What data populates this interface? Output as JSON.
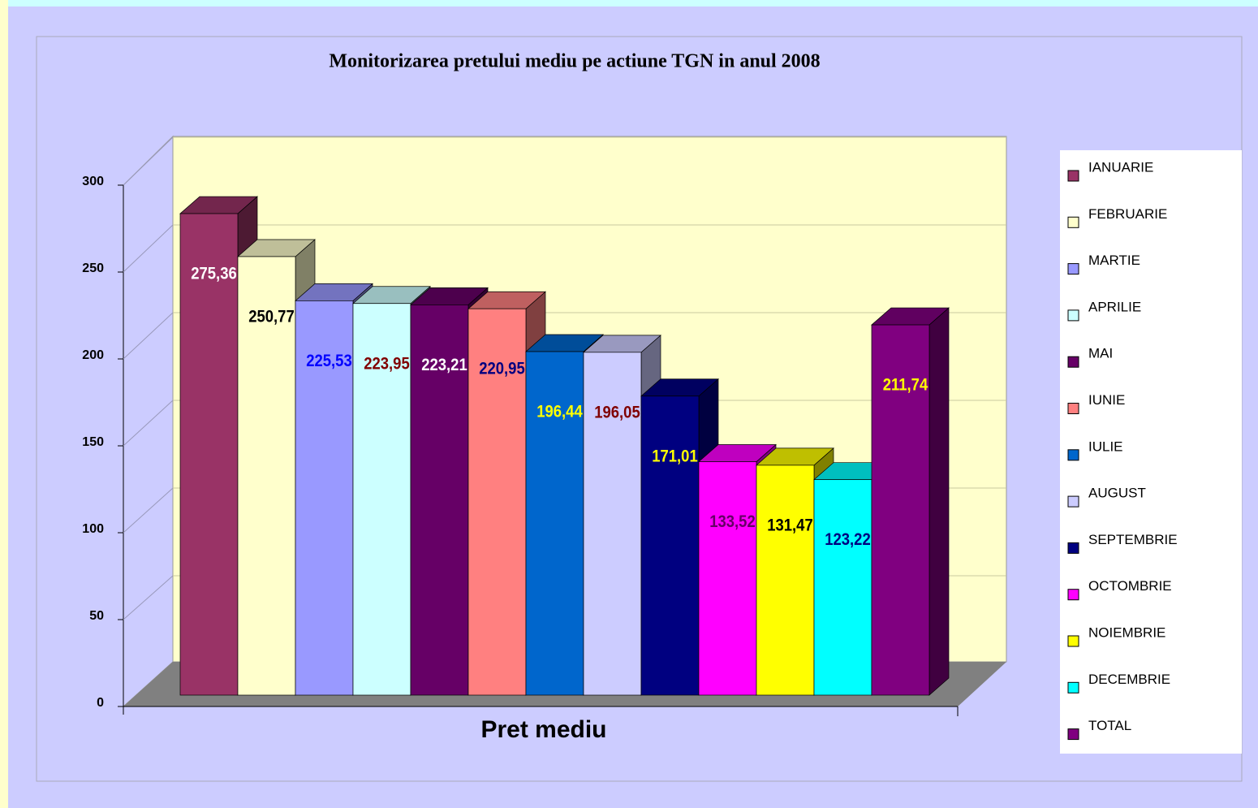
{
  "chart_data": {
    "type": "bar3d",
    "title": "Monitorizarea pretului mediu pe actiune TGN in anul 2008",
    "categories": [
      "Pret mediu"
    ],
    "series": [
      {
        "name": "IANUARIE",
        "color": "#993366",
        "label_color": "#ffffff",
        "values": [
          275.36
        ],
        "value_labels": [
          "275,36"
        ]
      },
      {
        "name": "FEBRUARIE",
        "color": "#ffffcc",
        "label_color": "#000000",
        "values": [
          250.77
        ],
        "value_labels": [
          "250,77"
        ]
      },
      {
        "name": "MARTIE",
        "color": "#9999ff",
        "label_color": "#0000ff",
        "values": [
          225.53
        ],
        "value_labels": [
          "225,53"
        ]
      },
      {
        "name": "APRILIE",
        "color": "#ccffff",
        "label_color": "#800000",
        "values": [
          223.95
        ],
        "value_labels": [
          "223,95"
        ]
      },
      {
        "name": "MAI",
        "color": "#660066",
        "label_color": "#ffffff",
        "values": [
          223.21
        ],
        "value_labels": [
          "223,21"
        ]
      },
      {
        "name": "IUNIE",
        "color": "#ff8080",
        "label_color": "#000080",
        "values": [
          220.95
        ],
        "value_labels": [
          "220,95"
        ]
      },
      {
        "name": "IULIE",
        "color": "#0066cc",
        "label_color": "#ffff00",
        "values": [
          196.44
        ],
        "value_labels": [
          "196,44"
        ]
      },
      {
        "name": "AUGUST",
        "color": "#ccccff",
        "label_color": "#800000",
        "values": [
          196.05
        ],
        "value_labels": [
          "196,05"
        ]
      },
      {
        "name": "SEPTEMBRIE",
        "color": "#000080",
        "label_color": "#ffff00",
        "values": [
          171.01
        ],
        "value_labels": [
          "171,01"
        ]
      },
      {
        "name": "OCTOMBRIE",
        "color": "#ff00ff",
        "label_color": "#660066",
        "values": [
          133.52
        ],
        "value_labels": [
          "133,52"
        ]
      },
      {
        "name": "NOIEMBRIE",
        "color": "#ffff00",
        "label_color": "#000000",
        "values": [
          131.47
        ],
        "value_labels": [
          "131,47"
        ]
      },
      {
        "name": "DECEMBRIE",
        "color": "#00ffff",
        "label_color": "#000080",
        "values": [
          123.22
        ],
        "value_labels": [
          "123,22"
        ]
      },
      {
        "name": "TOTAL",
        "color": "#800080",
        "label_color": "#ffff00",
        "values": [
          211.74
        ],
        "value_labels": [
          "211,74"
        ]
      }
    ],
    "ylim": [
      0,
      300
    ],
    "yticks": [
      0,
      50,
      100,
      150,
      200,
      250,
      300
    ],
    "grid": true,
    "legend": "right"
  }
}
